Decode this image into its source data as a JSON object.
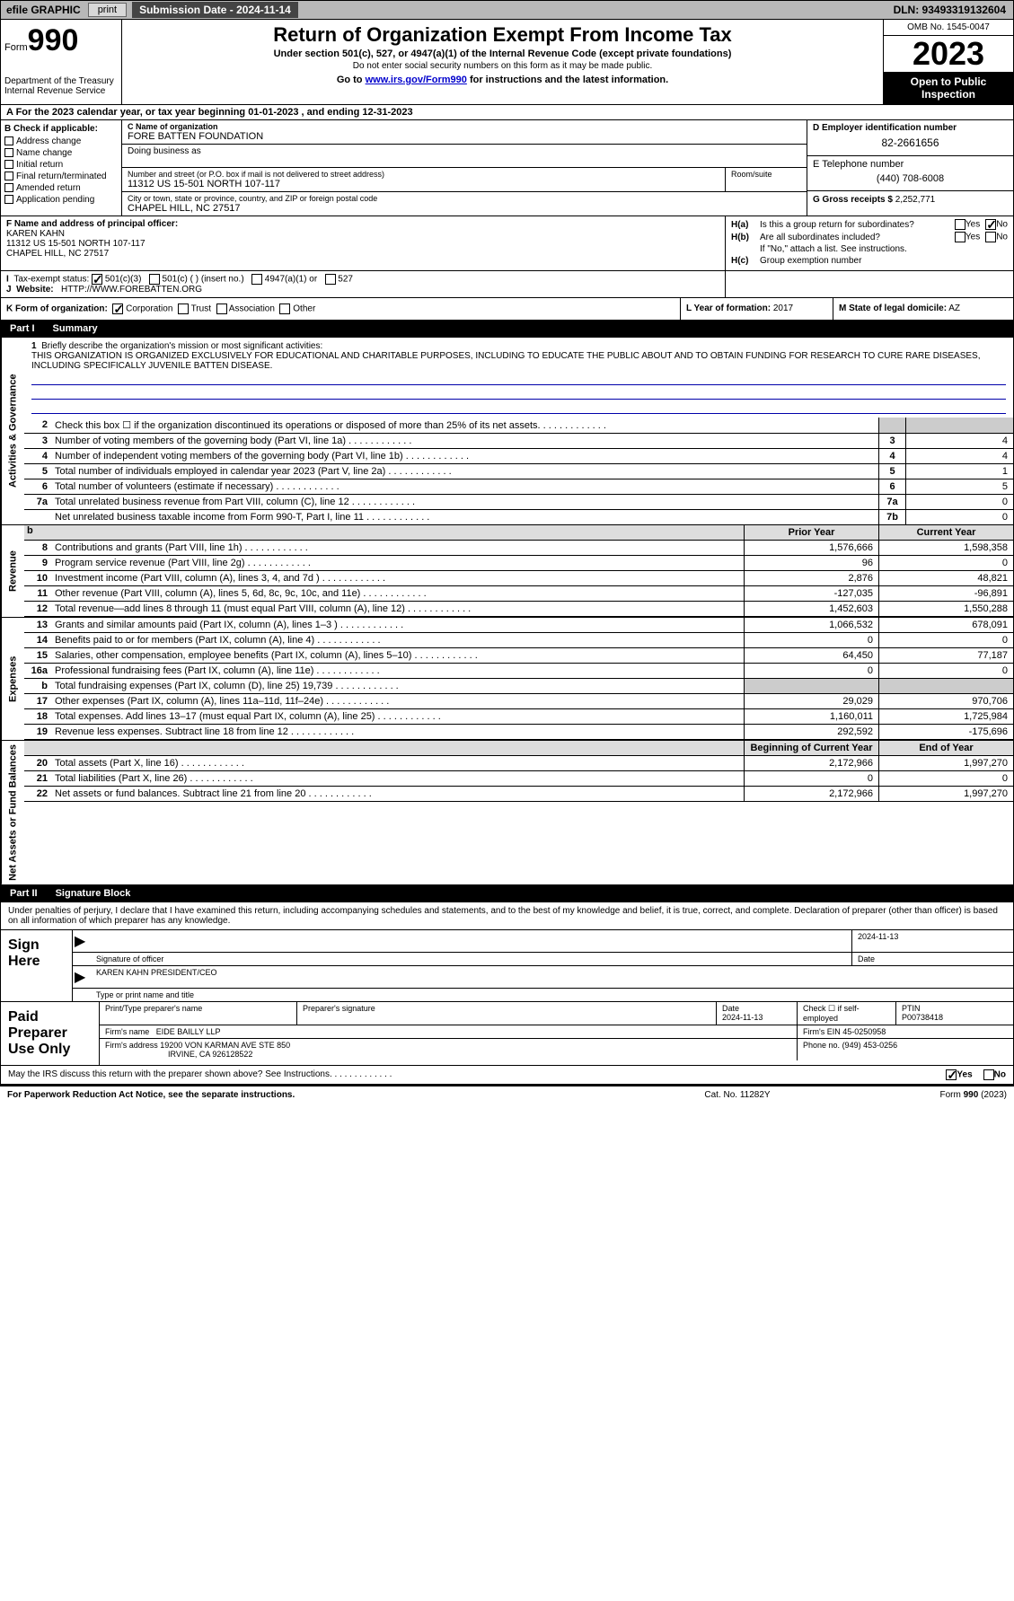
{
  "topbar": {
    "efile": "efile GRAPHIC",
    "print": "print",
    "subdate_label": "Submission Date - 2024-11-14",
    "dln": "DLN: 93493319132604"
  },
  "header": {
    "form_label": "Form",
    "form_number": "990",
    "dept": "Department of the Treasury Internal Revenue Service",
    "title": "Return of Organization Exempt From Income Tax",
    "subtitle": "Under section 501(c), 527, or 4947(a)(1) of the Internal Revenue Code (except private foundations)",
    "warning": "Do not enter social security numbers on this form as it may be made public.",
    "goto_pre": "Go to ",
    "goto_link": "www.irs.gov/Form990",
    "goto_post": " for instructions and the latest information.",
    "omb": "OMB No. 1545-0047",
    "year": "2023",
    "inspection": "Open to Public Inspection"
  },
  "line_a": "A For the 2023 calendar year, or tax year beginning 01-01-2023   , and ending 12-31-2023",
  "box_b": {
    "header": "B Check if applicable:",
    "opts": [
      "Address change",
      "Name change",
      "Initial return",
      "Final return/terminated",
      "Amended return",
      "Application pending"
    ]
  },
  "org": {
    "name_lbl": "C Name of organization",
    "name": "FORE BATTEN FOUNDATION",
    "dba_lbl": "Doing business as",
    "street_lbl": "Number and street (or P.O. box if mail is not delivered to street address)",
    "street": "11312 US 15-501 NORTH 107-117",
    "room_lbl": "Room/suite",
    "city_lbl": "City or town, state or province, country, and ZIP or foreign postal code",
    "city": "CHAPEL HILL, NC  27517"
  },
  "right_col": {
    "ein_lbl": "D Employer identification number",
    "ein": "82-2661656",
    "phone_lbl": "E Telephone number",
    "phone": "(440) 708-6008",
    "gross_lbl": "G Gross receipts $",
    "gross": "2,252,771"
  },
  "box_f": {
    "lbl": "F Name and address of principal officer:",
    "name": "KAREN KAHN",
    "addr1": "11312 US 15-501 NORTH 107-117",
    "addr2": "CHAPEL HILL, NC  27517"
  },
  "box_h": {
    "ha_lbl": "H(a)",
    "ha_txt": "Is this a group return for subordinates?",
    "hb_lbl": "H(b)",
    "hb_txt": "Are all subordinates included?",
    "hb_note": "If \"No,\" attach a list. See instructions.",
    "hc_lbl": "H(c)",
    "hc_txt": "Group exemption number ",
    "yes": "Yes",
    "no": "No"
  },
  "box_i": {
    "lbl": "Tax-exempt status:",
    "o1": "501(c)(3)",
    "o2": "501(c) (  ) (insert no.)",
    "o3": "4947(a)(1) or",
    "o4": "527"
  },
  "box_j": {
    "lbl": "Website: ",
    "val": "HTTP://WWW.FOREBATTEN.ORG"
  },
  "box_k": {
    "lbl": "K Form of organization:",
    "opts": [
      "Corporation",
      "Trust",
      "Association",
      "Other"
    ]
  },
  "box_l": {
    "lbl": "L Year of formation:",
    "val": "2017"
  },
  "box_m": {
    "lbl": "M State of legal domicile:",
    "val": "AZ"
  },
  "part1": {
    "num": "Part I",
    "title": "Summary"
  },
  "mission": {
    "lbl": "1",
    "intro": "Briefly describe the organization's mission or most significant activities:",
    "text": "THIS ORGANIZATION IS ORGANIZED EXCLUSIVELY FOR EDUCATIONAL AND CHARITABLE PURPOSES, INCLUDING TO EDUCATE THE PUBLIC ABOUT AND TO OBTAIN FUNDING FOR RESEARCH TO CURE RARE DISEASES, INCLUDING SPECIFICALLY JUVENILE BATTEN DISEASE."
  },
  "gov_lines": [
    {
      "n": "2",
      "t": "Check this box ☐ if the organization discontinued its operations or disposed of more than 25% of its net assets.",
      "box": "",
      "val": ""
    },
    {
      "n": "3",
      "t": "Number of voting members of the governing body (Part VI, line 1a)",
      "box": "3",
      "val": "4"
    },
    {
      "n": "4",
      "t": "Number of independent voting members of the governing body (Part VI, line 1b)",
      "box": "4",
      "val": "4"
    },
    {
      "n": "5",
      "t": "Total number of individuals employed in calendar year 2023 (Part V, line 2a)",
      "box": "5",
      "val": "1"
    },
    {
      "n": "6",
      "t": "Total number of volunteers (estimate if necessary)",
      "box": "6",
      "val": "5"
    },
    {
      "n": "7a",
      "t": "Total unrelated business revenue from Part VIII, column (C), line 12",
      "box": "7a",
      "val": "0"
    },
    {
      "n": "",
      "t": "Net unrelated business taxable income from Form 990-T, Part I, line 11",
      "box": "7b",
      "val": "0"
    }
  ],
  "col_headers": {
    "prior": "Prior Year",
    "current": "Current Year",
    "begin": "Beginning of Current Year",
    "end": "End of Year"
  },
  "rev_tab_label": "Revenue",
  "gov_tab_label": "Activities & Governance",
  "exp_tab_label": "Expenses",
  "net_tab_label": "Net Assets or Fund Balances",
  "rev_lines": [
    {
      "n": "8",
      "t": "Contributions and grants (Part VIII, line 1h)",
      "py": "1,576,666",
      "cy": "1,598,358"
    },
    {
      "n": "9",
      "t": "Program service revenue (Part VIII, line 2g)",
      "py": "96",
      "cy": "0"
    },
    {
      "n": "10",
      "t": "Investment income (Part VIII, column (A), lines 3, 4, and 7d )",
      "py": "2,876",
      "cy": "48,821"
    },
    {
      "n": "11",
      "t": "Other revenue (Part VIII, column (A), lines 5, 6d, 8c, 9c, 10c, and 11e)",
      "py": "-127,035",
      "cy": "-96,891"
    },
    {
      "n": "12",
      "t": "Total revenue—add lines 8 through 11 (must equal Part VIII, column (A), line 12)",
      "py": "1,452,603",
      "cy": "1,550,288"
    }
  ],
  "exp_lines": [
    {
      "n": "13",
      "t": "Grants and similar amounts paid (Part IX, column (A), lines 1–3 )",
      "py": "1,066,532",
      "cy": "678,091"
    },
    {
      "n": "14",
      "t": "Benefits paid to or for members (Part IX, column (A), line 4)",
      "py": "0",
      "cy": "0"
    },
    {
      "n": "15",
      "t": "Salaries, other compensation, employee benefits (Part IX, column (A), lines 5–10)",
      "py": "64,450",
      "cy": "77,187"
    },
    {
      "n": "16a",
      "t": "Professional fundraising fees (Part IX, column (A), line 11e)",
      "py": "0",
      "cy": "0"
    },
    {
      "n": "b",
      "t": "Total fundraising expenses (Part IX, column (D), line 25) 19,739",
      "py": "",
      "cy": "",
      "grey": true
    },
    {
      "n": "17",
      "t": "Other expenses (Part IX, column (A), lines 11a–11d, 11f–24e)",
      "py": "29,029",
      "cy": "970,706"
    },
    {
      "n": "18",
      "t": "Total expenses. Add lines 13–17 (must equal Part IX, column (A), line 25)",
      "py": "1,160,011",
      "cy": "1,725,984"
    },
    {
      "n": "19",
      "t": "Revenue less expenses. Subtract line 18 from line 12",
      "py": "292,592",
      "cy": "-175,696"
    }
  ],
  "net_lines": [
    {
      "n": "20",
      "t": "Total assets (Part X, line 16)",
      "py": "2,172,966",
      "cy": "1,997,270"
    },
    {
      "n": "21",
      "t": "Total liabilities (Part X, line 26)",
      "py": "0",
      "cy": "0"
    },
    {
      "n": "22",
      "t": "Net assets or fund balances. Subtract line 21 from line 20",
      "py": "2,172,966",
      "cy": "1,997,270"
    }
  ],
  "part2": {
    "num": "Part II",
    "title": "Signature Block"
  },
  "sig_note": "Under penalties of perjury, I declare that I have examined this return, including accompanying schedules and statements, and to the best of my knowledge and belief, it is true, correct, and complete. Declaration of preparer (other than officer) is based on all information of which preparer has any knowledge.",
  "sign": {
    "label": "Sign Here",
    "date": "2024-11-13",
    "sig_lbl": "Signature of officer",
    "name": "KAREN KAHN  PRESIDENT/CEO",
    "name_lbl": "Type or print name and title",
    "date_lbl": "Date"
  },
  "prep": {
    "label": "Paid Preparer Use Only",
    "name_lbl": "Print/Type preparer's name",
    "sig_lbl": "Preparer's signature",
    "date_lbl": "Date",
    "date": "2024-11-13",
    "check_lbl": "Check ☐ if self-employed",
    "ptin_lbl": "PTIN",
    "ptin": "P00738418",
    "firm_name_lbl": "Firm's name  ",
    "firm_name": "EIDE BAILLY LLP",
    "firm_ein_lbl": "Firm's EIN ",
    "firm_ein": "45-0250958",
    "firm_addr_lbl": "Firm's address ",
    "firm_addr1": "19200 VON KARMAN AVE STE 850",
    "firm_addr2": "IRVINE, CA  926128522",
    "phone_lbl": "Phone no.",
    "phone": "(949) 453-0256"
  },
  "discuss": {
    "txt": "May the IRS discuss this return with the preparer shown above? See Instructions.",
    "yes": "Yes",
    "no": "No"
  },
  "footer": {
    "left": "For Paperwork Reduction Act Notice, see the separate instructions.",
    "mid": "Cat. No. 11282Y",
    "right_pre": "Form ",
    "right_bold": "990",
    "right_post": " (2023)"
  }
}
